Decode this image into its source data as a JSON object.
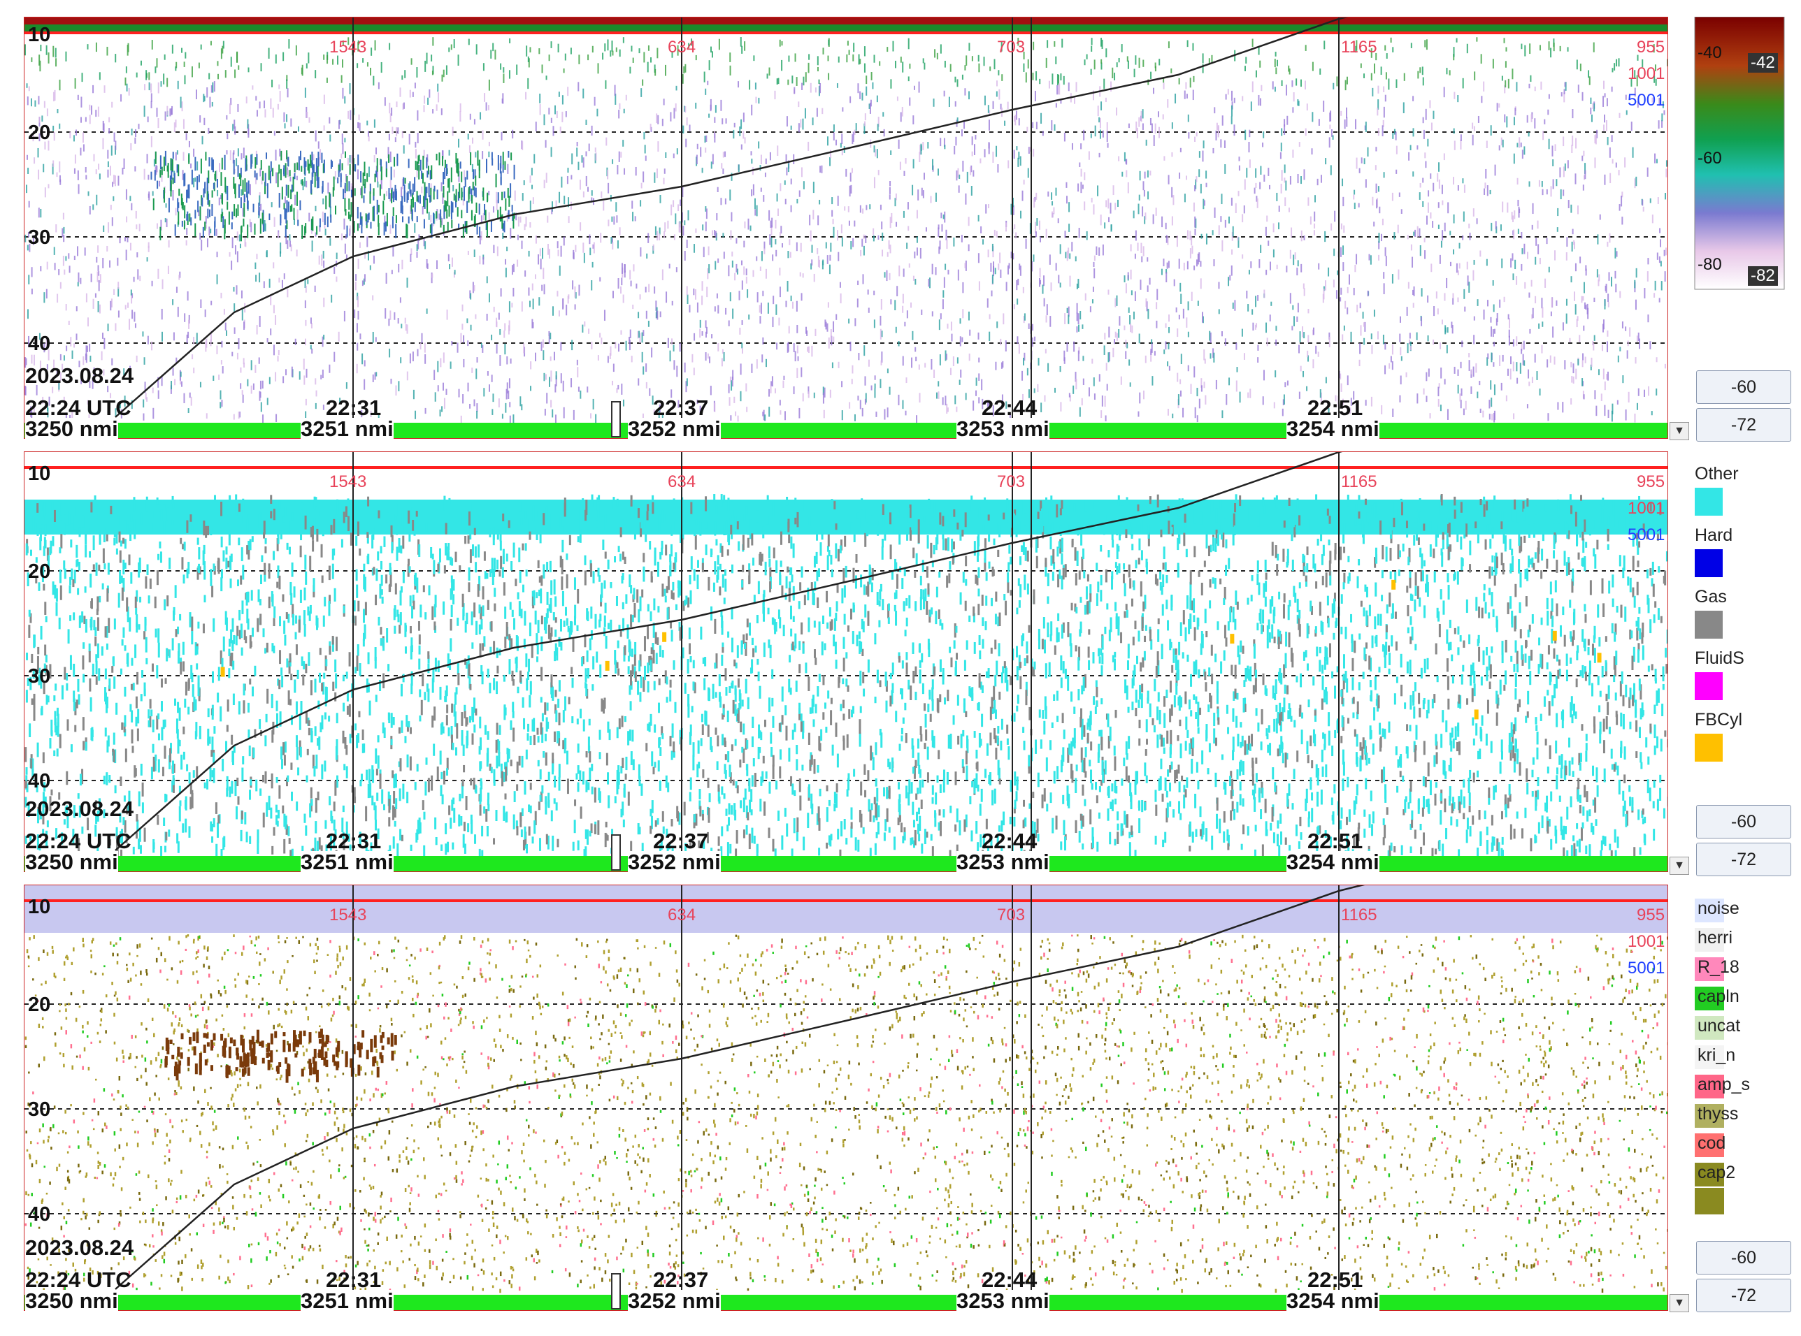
{
  "date_label": "2023.08.24",
  "time_start": "22:24 UTC",
  "time_ticks": [
    "22:31",
    "22:37",
    "22:44",
    "22:51"
  ],
  "distance_ticks": [
    "3250 nmi",
    "3251 nmi",
    "3252 nmi",
    "3253 nmi",
    "3254 nmi"
  ],
  "depth_ticks": [
    "10",
    "20",
    "30",
    "40"
  ],
  "annotations": [
    "1543",
    "634",
    "703",
    "1165",
    "955",
    "1001",
    "5001"
  ],
  "colorbar": {
    "labels": [
      "-40",
      "-60",
      "-80"
    ],
    "bounds": [
      "-42",
      "-82"
    ],
    "colors": [
      "#7a0000",
      "#b04010",
      "#2a8a2a",
      "#20c0a0",
      "#8080c0",
      "#e0c0e0",
      "#ffffff"
    ]
  },
  "panels": [
    {
      "id": "sv",
      "buttons": [
        "-60",
        "-72"
      ]
    },
    {
      "id": "categorization",
      "buttons": [
        "-60",
        "-72"
      ]
    },
    {
      "id": "species",
      "buttons": [
        "-60",
        "-72"
      ]
    }
  ],
  "legend_categories": [
    {
      "label": "Other",
      "color": "#33e6e6"
    },
    {
      "label": "Hard",
      "color": "#0000e6"
    },
    {
      "label": "Gas",
      "color": "#888888"
    },
    {
      "label": "FluidS",
      "color": "#ff00ff"
    },
    {
      "label": "FBCyl",
      "color": "#ffc000"
    }
  ],
  "legend_species": [
    {
      "label": "noise",
      "color": "#dde6ff"
    },
    {
      "label": "herri",
      "color": "#f0f0f0"
    },
    {
      "label": "R_18",
      "color": "#ff88bb"
    },
    {
      "label": "capln",
      "color": "#22cc22"
    },
    {
      "label": "uncat",
      "color": "#d0e8c0"
    },
    {
      "label": "kri_n",
      "color": "#f4f4f4"
    },
    {
      "label": "amp_s",
      "color": "#ff6688"
    },
    {
      "label": "thyss",
      "color": "#b0b060"
    },
    {
      "label": "cod",
      "color": "#ff7070"
    },
    {
      "label": "cap2",
      "color": "#8a8a20"
    }
  ]
}
